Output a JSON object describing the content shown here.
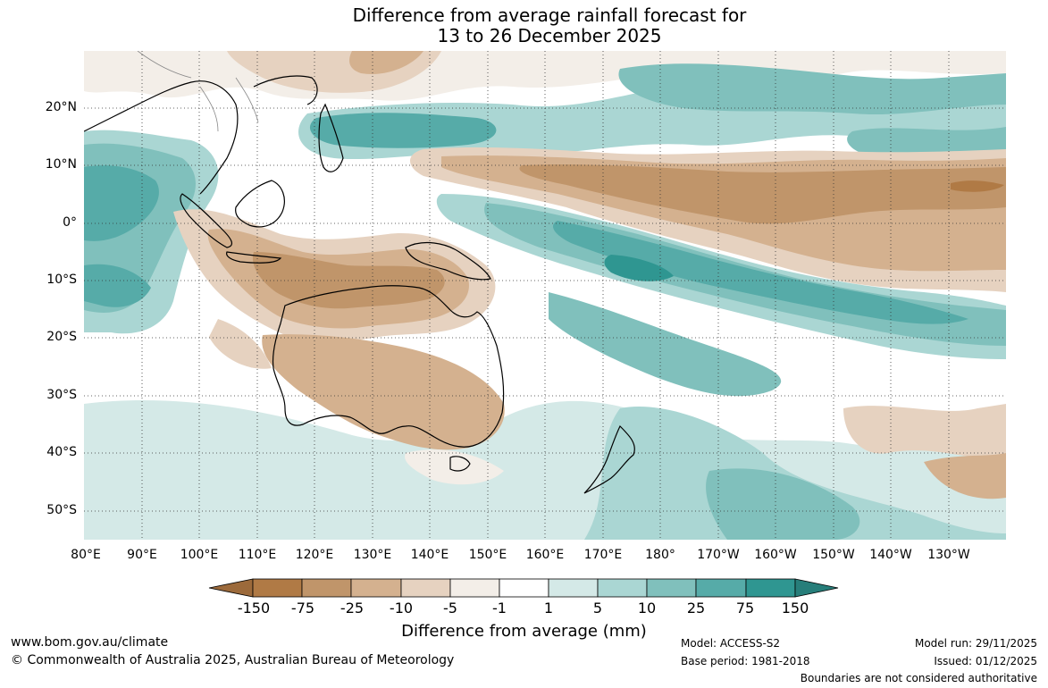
{
  "title_line1": "Difference from average rainfall forecast for",
  "title_line2": "13 to 26 December 2025",
  "lat_labels": [
    "20°N",
    "10°N",
    "0°",
    "10°S",
    "20°S",
    "30°S",
    "40°S",
    "50°S"
  ],
  "lon_labels": [
    "80°E",
    "90°E",
    "100°E",
    "110°E",
    "120°E",
    "130°E",
    "140°E",
    "150°E",
    "160°E",
    "170°E",
    "180°",
    "170°W",
    "160°W",
    "150°W",
    "140°W",
    "130°W"
  ],
  "legend": {
    "title": "Difference from average (mm)",
    "ticks": [
      "-150",
      "-75",
      "-25",
      "-10",
      "-5",
      "-1",
      "1",
      "5",
      "10",
      "25",
      "75",
      "150"
    ],
    "colors": [
      "#9c6a3b",
      "#b07a45",
      "#c0956a",
      "#d4b18f",
      "#e6d2c0",
      "#f3eee8",
      "#ffffff",
      "#d4e9e7",
      "#aad6d3",
      "#80c0bc",
      "#56aba8",
      "#2f9691",
      "#277e7a"
    ]
  },
  "footer": {
    "website": "www.bom.gov.au/climate",
    "copyright": "© Commonwealth of Australia 2025, Australian Bureau of Meteorology",
    "model": "Model: ACCESS-S2",
    "base_period": "Base period: 1981-2018",
    "model_run": "Model run: 29/11/2025",
    "issued": "Issued: 01/12/2025",
    "disclaimer": "Boundaries are not considered authoritative"
  }
}
